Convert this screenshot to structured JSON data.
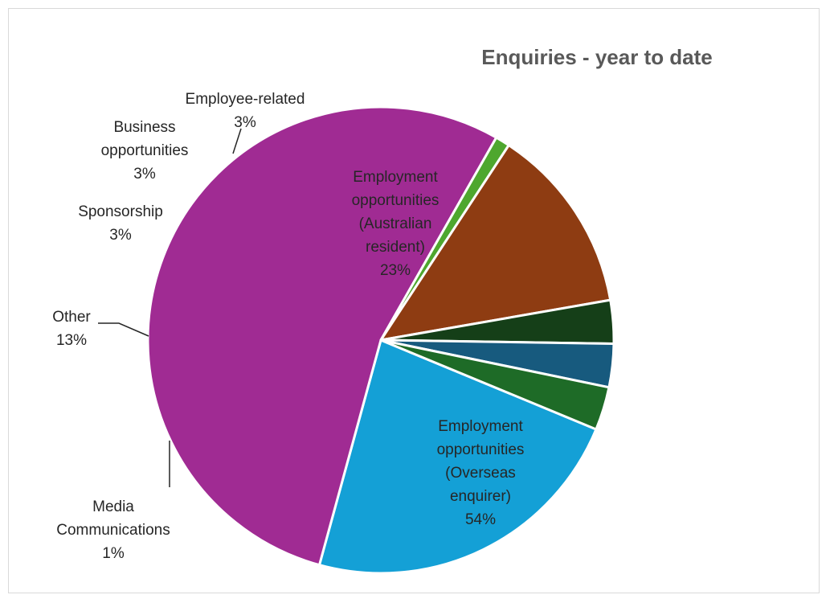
{
  "chart_data": {
    "type": "pie",
    "title": "Enquiries - year to date",
    "start_angle_deg": 112.5,
    "direction": "clockwise",
    "slices": [
      {
        "label_lines": [
          "Employment",
          "opportunities",
          "(Australian",
          "resident)"
        ],
        "value": 23,
        "value_label": "23%",
        "color": "#14a0d6"
      },
      {
        "label_lines": [
          "Employment",
          "opportunities",
          "(Overseas",
          "enquirer)"
        ],
        "value": 54,
        "value_label": "54%",
        "color": "#a02b93"
      },
      {
        "label_lines": [
          "Media",
          "Communications"
        ],
        "value": 1,
        "value_label": "1%",
        "color": "#4ea72e"
      },
      {
        "label_lines": [
          "Other"
        ],
        "value": 13,
        "value_label": "13%",
        "color": "#8e3c12"
      },
      {
        "label_lines": [
          "Sponsorship"
        ],
        "value": 3,
        "value_label": "3%",
        "color": "#153f18"
      },
      {
        "label_lines": [
          "Business",
          "opportunities"
        ],
        "value": 3,
        "value_label": "3%",
        "color": "#175a7e"
      },
      {
        "label_lines": [
          "Employee-related"
        ],
        "value": 3,
        "value_label": "3%",
        "color": "#1e6b27"
      }
    ],
    "legend": "none"
  }
}
